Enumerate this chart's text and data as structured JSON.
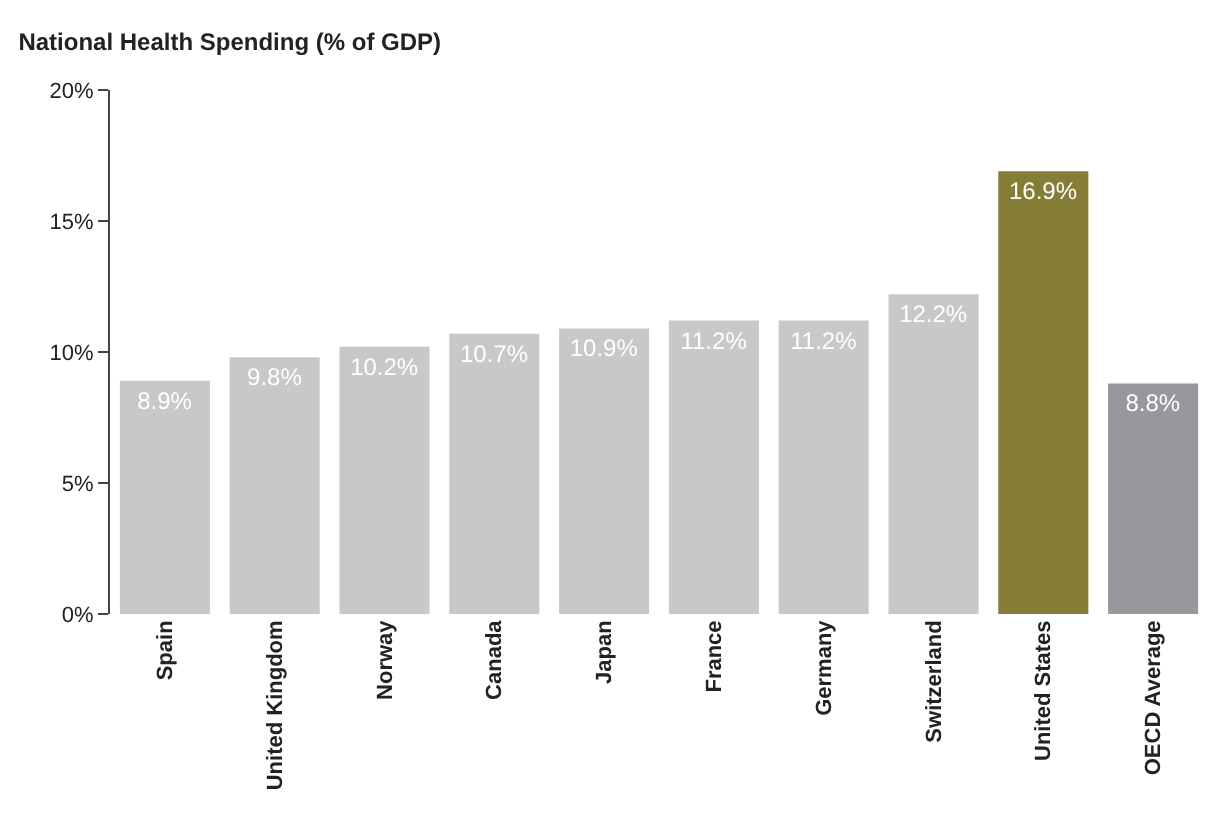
{
  "chart_data": {
    "type": "bar",
    "title": "National Health Spending (% of GDP)",
    "categories": [
      "Spain",
      "United Kingdom",
      "Norway",
      "Canada",
      "Japan",
      "France",
      "Germany",
      "Switzerland",
      "United States",
      "OECD Average"
    ],
    "values": [
      8.9,
      9.8,
      10.2,
      10.7,
      10.9,
      11.2,
      11.2,
      12.2,
      16.9,
      8.8
    ],
    "colors": [
      "#c8c8c8",
      "#c8c8c8",
      "#c8c8c8",
      "#c8c8c8",
      "#c8c8c8",
      "#c8c8c8",
      "#c8c8c8",
      "#c8c8c8",
      "#857c35",
      "#98989c"
    ],
    "value_labels": [
      "8.9%",
      "9.8%",
      "10.2%",
      "10.7%",
      "10.9%",
      "11.2%",
      "11.2%",
      "12.2%",
      "16.9%",
      "8.8%"
    ],
    "ylim": [
      0,
      20
    ],
    "yticks": [
      {
        "value": 0,
        "label": "0%"
      },
      {
        "value": 5,
        "label": "5%"
      },
      {
        "value": 10,
        "label": "10%"
      },
      {
        "value": 15,
        "label": "15%"
      },
      {
        "value": 20,
        "label": "20%"
      }
    ],
    "grid": false
  }
}
